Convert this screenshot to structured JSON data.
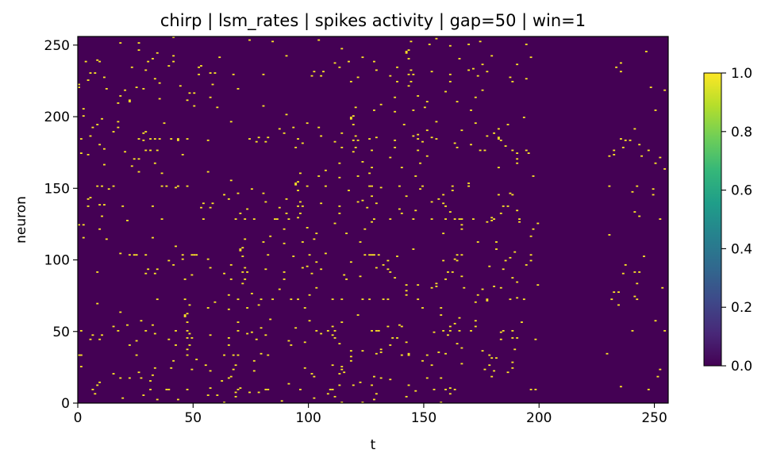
{
  "chart_data": {
    "type": "heatmap",
    "title": "chirp | lsm_rates | spikes activity | gap=50 | win=1",
    "xlabel": "t",
    "ylabel": "neuron",
    "xlim": [
      0,
      256
    ],
    "ylim": [
      0,
      256
    ],
    "x_ticks": [
      0,
      50,
      100,
      150,
      200,
      250
    ],
    "y_ticks": [
      0,
      50,
      100,
      150,
      200,
      250
    ],
    "value_range": [
      0.0,
      1.0
    ],
    "colormap": "viridis",
    "background_value": 0.0,
    "spike_value": 1.0,
    "colorbar": {
      "ticks": [
        "0.0",
        "0.2",
        "0.4",
        "0.6",
        "0.8",
        "1.0"
      ],
      "values": [
        0.0,
        0.2,
        0.4,
        0.6,
        0.8,
        1.0
      ]
    },
    "active_window_t": [
      0,
      199
    ],
    "sparse_window_t": [
      229,
      256
    ],
    "spike_density_estimate": 0.011,
    "row_hotspots": [
      176,
      184,
      151,
      128,
      103,
      72,
      50,
      33,
      9
    ],
    "grid": false
  },
  "colors": {
    "low": "#440154",
    "high": "#fde725",
    "viridis_stops": [
      "#440154",
      "#482878",
      "#3e4989",
      "#31688e",
      "#26828e",
      "#1f9e89",
      "#35b779",
      "#6ece58",
      "#b5de2b",
      "#fde725"
    ],
    "axis": "#000000"
  }
}
